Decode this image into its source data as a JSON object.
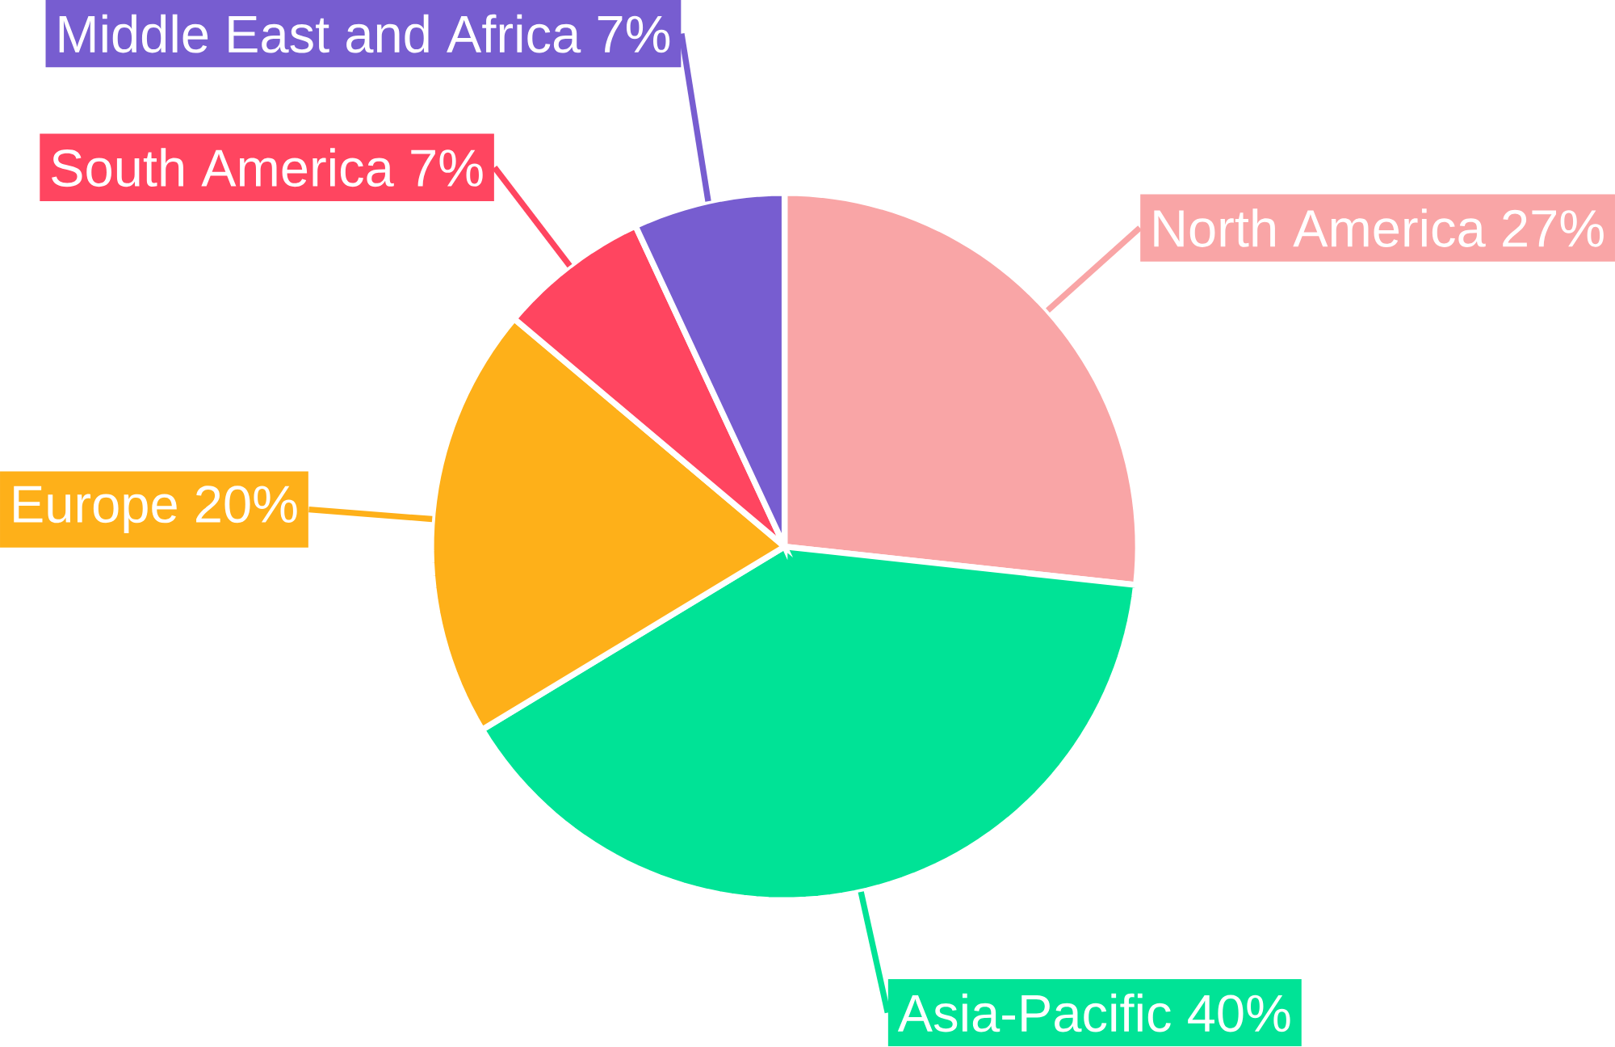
{
  "chart_data": {
    "type": "pie",
    "categories": [
      "North America",
      "Asia-Pacific",
      "Europe",
      "South America",
      "Middle East and Africa"
    ],
    "values": [
      27,
      40,
      20,
      7,
      7
    ],
    "value_labels": [
      "27%",
      "40%",
      "20%",
      "7%",
      "7%"
    ],
    "colors": [
      "#f9a5a6",
      "#00e396",
      "#feb019",
      "#ff4560",
      "#775dd0"
    ]
  }
}
